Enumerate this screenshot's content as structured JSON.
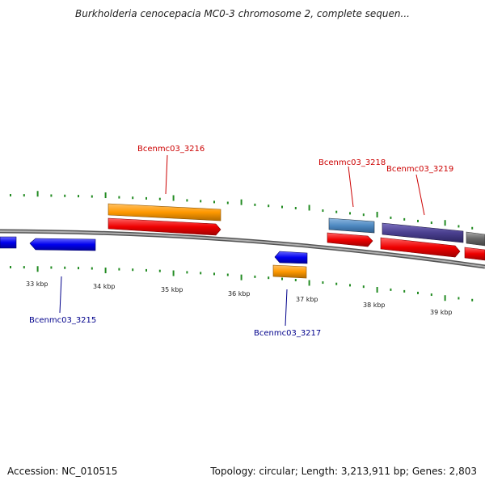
{
  "title": "Burkholderia cenocepacia MC0-3 chromosome 2, complete sequen...",
  "footer": {
    "accession": "Accession: NC_010515",
    "summary": "Topology: circular; Length: 3,213,911 bp; Genes: 2,803"
  },
  "scale": {
    "unit": "kbp",
    "ticks": [
      "33 kbp",
      "34 kbp",
      "35 kbp",
      "36 kbp",
      "37 kbp",
      "38 kbp",
      "39 kbp"
    ]
  },
  "genes": [
    {
      "name": "Bcenmc03_3215",
      "color": "#00008b"
    },
    {
      "name": "Bcenmc03_3216",
      "color": "#cc0000"
    },
    {
      "name": "Bcenmc03_3217",
      "color": "#00008b"
    },
    {
      "name": "Bcenmc03_3218",
      "color": "#cc0000"
    },
    {
      "name": "Bcenmc03_3219",
      "color": "#cc0000"
    }
  ],
  "colors": {
    "backbone": "#888888",
    "ticks": "#228b22",
    "cds_forward": "#ee0000",
    "gene_orange": "#ff9900",
    "gene_blue": "#0000ee",
    "gene_steelblue": "#4f8ac2",
    "gene_slate": "#4a3f8f",
    "gene_gray": "#666666"
  }
}
